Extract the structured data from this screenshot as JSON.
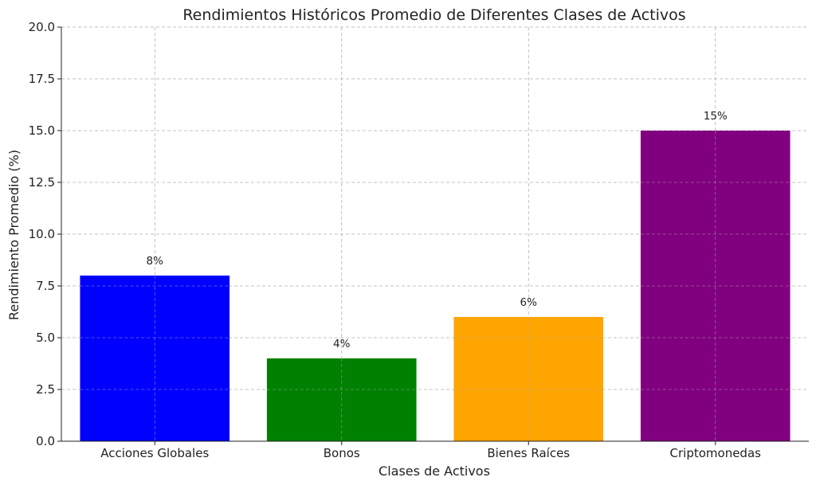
{
  "chart_data": {
    "type": "bar",
    "title": "Rendimientos Históricos Promedio de Diferentes Clases de Activos",
    "xlabel": "Clases de Activos",
    "ylabel": "Rendimiento Promedio (%)",
    "categories": [
      "Acciones Globales",
      "Bonos",
      "Bienes Raíces",
      "Criptomonedas"
    ],
    "values": [
      8,
      4,
      6,
      15
    ],
    "data_labels": [
      "8%",
      "4%",
      "6%",
      "15%"
    ],
    "colors": [
      "#0000ff",
      "#008000",
      "#ffa500",
      "#800080"
    ],
    "ylim": [
      0,
      20
    ],
    "yticks": [
      "0.0",
      "2.5",
      "5.0",
      "7.5",
      "10.0",
      "12.5",
      "15.0",
      "17.5",
      "20.0"
    ],
    "grid": true,
    "legend": "none"
  }
}
